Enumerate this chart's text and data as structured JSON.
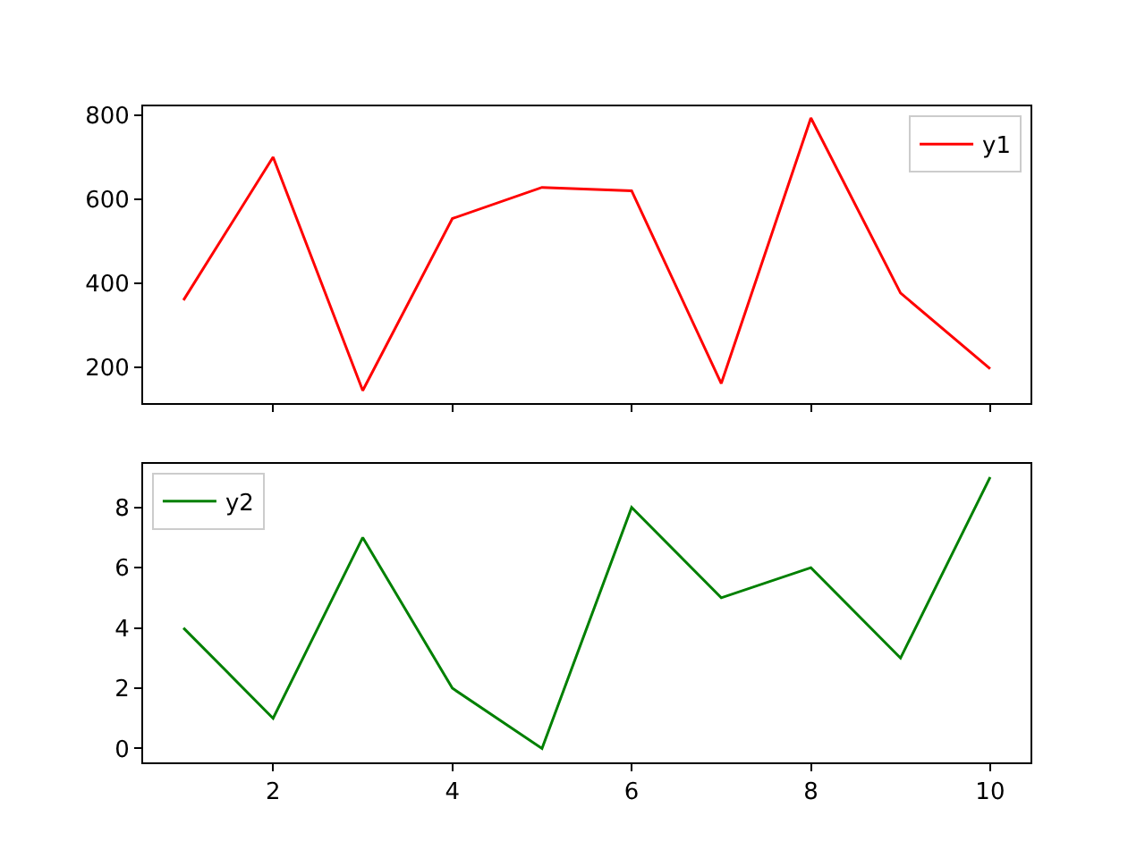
{
  "chart_data": [
    {
      "type": "line",
      "x": [
        1,
        2,
        3,
        4,
        5,
        6,
        7,
        8,
        9,
        10
      ],
      "series": [
        {
          "name": "y1",
          "color": "#ff0000",
          "values": [
            360,
            700,
            145,
            554,
            628,
            620,
            162,
            793,
            377,
            197
          ]
        }
      ],
      "xlim": [
        0.55,
        10.45
      ],
      "xticks": [
        2,
        4,
        6,
        8,
        10
      ],
      "ylim": [
        115,
        820
      ],
      "yticks": [
        200,
        400,
        600,
        800
      ],
      "tick_labels": "y",
      "legend": "top right",
      "marker": "none",
      "line_style": "solid"
    },
    {
      "type": "line",
      "x": [
        1,
        2,
        3,
        4,
        5,
        6,
        7,
        8,
        9,
        10
      ],
      "series": [
        {
          "name": "y2",
          "color": "#008000",
          "values": [
            4,
            1,
            7,
            2,
            0,
            8,
            5,
            6,
            3,
            9
          ]
        }
      ],
      "xlim": [
        0.55,
        10.45
      ],
      "xticks": [
        2,
        4,
        6,
        8,
        10
      ],
      "ylim": [
        -0.45,
        9.45
      ],
      "yticks": [
        0,
        2,
        4,
        6,
        8
      ],
      "legend": "top left",
      "marker": "none",
      "line_style": "solid"
    }
  ]
}
